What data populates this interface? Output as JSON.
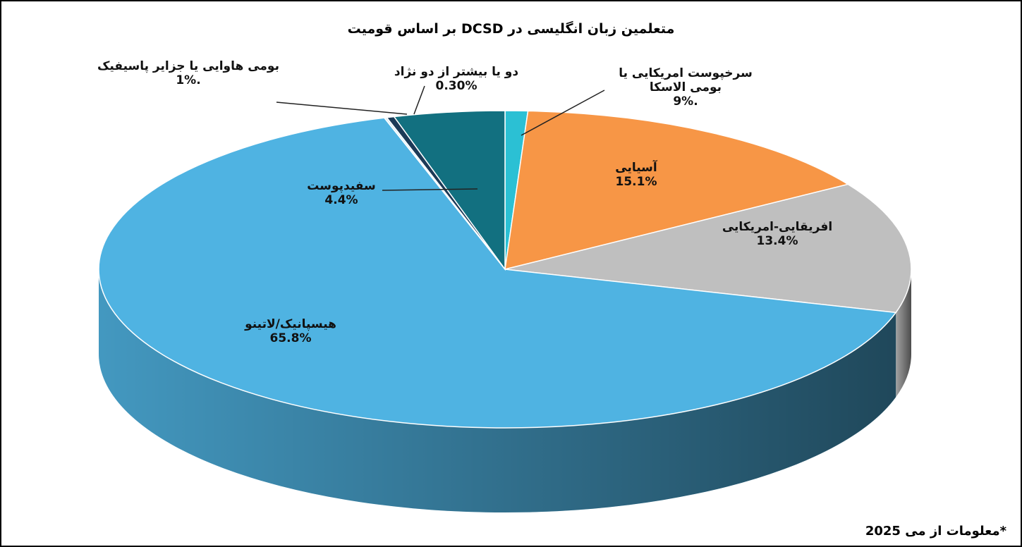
{
  "chart_data": {
    "type": "pie",
    "title": "متعلمین زبان انگلیسی در DCSD بر اساس قومیت",
    "categories": [
      "سرخپوست امریکایی یا بومی الاسکا",
      "آسیایی",
      "افریقایی-امریکایی",
      "هیسپانیک/لاتینو",
      "بومی هاوایی یا جزایر پاسیفیک",
      "دو یا بیشتر از دو نژاد",
      "سفیدپوست"
    ],
    "values": [
      0.9,
      15.1,
      13.4,
      65.8,
      0.1,
      0.3,
      4.4
    ],
    "value_labels": [
      ".9%",
      "15.1%",
      "13.4%",
      "65.8%",
      ".1%",
      "0.30%",
      "4.4%"
    ],
    "colors": [
      "#2bc0d4",
      "#f79646",
      "#bfbfbf",
      "#4fb3e2",
      "#d9eef7",
      "#1c3a57",
      "#127080"
    ],
    "annotation": "*معلومات از می 2025"
  }
}
